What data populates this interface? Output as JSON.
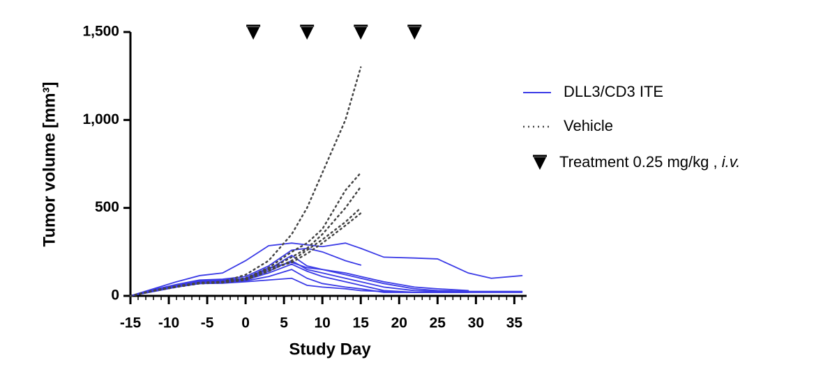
{
  "chart_data": {
    "type": "line",
    "xlabel": "Study Day",
    "ylabel": "Tumor volume [mm³]",
    "xlim": [
      -15,
      36.6
    ],
    "xticks": [
      -15,
      -10,
      -5,
      0,
      5,
      10,
      15,
      20,
      25,
      30,
      35
    ],
    "xminor": 1,
    "ylim": [
      0,
      1500
    ],
    "yticks": [
      0,
      {
        "value": 500,
        "label": "500"
      },
      {
        "value": 1000,
        "label": "1,000"
      },
      {
        "value": 1500,
        "label": "1,500"
      }
    ],
    "x": [
      -15,
      -12,
      -9,
      -6,
      -3,
      0,
      3,
      6,
      8,
      10,
      13,
      15,
      18,
      22,
      25,
      29,
      32,
      36
    ],
    "groups": [
      {
        "name": "DLL3/CD3 ITE",
        "color": "#3a3ae6",
        "dash": "solid",
        "lines": [
          [
            0,
            40,
            80,
            115,
            130,
            200,
            285,
            300,
            290,
            280,
            300,
            270,
            220,
            215,
            210,
            130,
            100,
            115
          ],
          [
            0,
            35,
            65,
            90,
            95,
            110,
            170,
            260,
            270,
            250,
            200,
            175,
            null,
            null,
            null,
            null,
            null,
            null
          ],
          [
            0,
            30,
            60,
            80,
            85,
            100,
            150,
            230,
            170,
            150,
            120,
            100,
            70,
            40,
            30,
            25,
            25,
            25
          ],
          [
            0,
            30,
            55,
            75,
            80,
            95,
            140,
            200,
            150,
            130,
            100,
            80,
            50,
            30,
            25,
            20,
            null,
            null
          ],
          [
            0,
            28,
            55,
            75,
            80,
            90,
            130,
            180,
            140,
            110,
            80,
            60,
            30,
            20,
            20,
            20,
            20,
            20
          ],
          [
            0,
            25,
            50,
            70,
            75,
            85,
            110,
            150,
            100,
            70,
            50,
            40,
            20,
            20,
            20,
            20,
            null,
            null
          ],
          [
            0,
            25,
            50,
            70,
            72,
            80,
            90,
            100,
            60,
            50,
            40,
            30,
            25,
            20,
            20,
            20,
            null,
            null
          ],
          [
            0,
            30,
            60,
            85,
            90,
            100,
            160,
            190,
            160,
            150,
            130,
            110,
            80,
            50,
            40,
            30,
            null,
            null
          ]
        ]
      },
      {
        "name": "Vehicle",
        "color": "#444444",
        "dash": "dotted",
        "lines": [
          [
            0,
            30,
            55,
            75,
            80,
            120,
            200,
            350,
            500,
            700,
            1000,
            1300,
            null,
            null,
            null,
            null,
            null,
            null
          ],
          [
            0,
            30,
            55,
            75,
            80,
            100,
            160,
            250,
            300,
            380,
            600,
            700,
            null,
            null,
            null,
            null,
            null,
            null
          ],
          [
            0,
            28,
            52,
            72,
            78,
            100,
            150,
            220,
            270,
            350,
            500,
            620,
            null,
            null,
            null,
            null,
            null,
            null
          ],
          [
            0,
            28,
            50,
            70,
            75,
            90,
            140,
            200,
            260,
            320,
            420,
            500,
            null,
            null,
            null,
            null,
            null,
            null
          ],
          [
            0,
            30,
            55,
            72,
            78,
            95,
            150,
            190,
            240,
            300,
            400,
            470,
            null,
            null,
            null,
            null,
            null,
            null
          ]
        ]
      }
    ],
    "treatment": {
      "days": [
        1,
        8,
        15,
        22
      ],
      "label": "Treatment 0.25 mg/kg , ",
      "label_italic": "i.v.",
      "color": "#000000"
    }
  }
}
